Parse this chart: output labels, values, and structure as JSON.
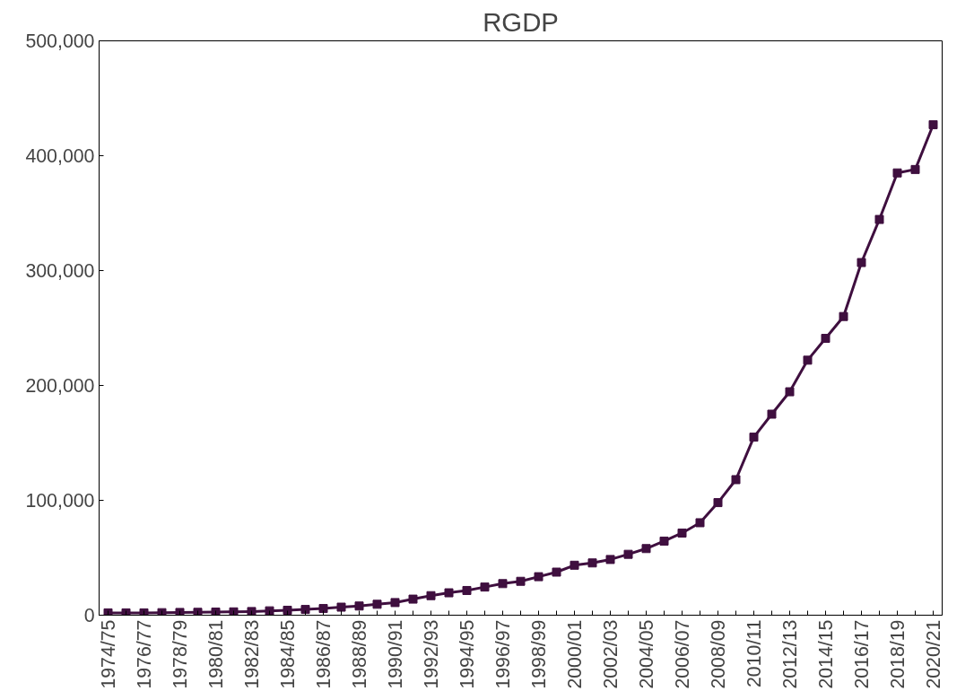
{
  "chart_data": {
    "type": "line",
    "title": "RGDP",
    "categories": [
      "1974/75",
      null,
      "1976/77",
      null,
      "1978/79",
      null,
      "1980/81",
      null,
      "1982/83",
      null,
      "1984/85",
      null,
      "1986/87",
      null,
      "1988/89",
      null,
      "1990/91",
      null,
      "1992/93",
      null,
      "1994/95",
      null,
      "1996/97",
      null,
      "1998/99",
      null,
      "2000/01",
      null,
      "2002/03",
      null,
      "2004/05",
      null,
      "2006/07",
      null,
      "2008/09",
      null,
      "2010/11",
      null,
      "2012/13",
      null,
      "2014/15",
      null,
      "2016/17",
      null,
      "2018/19",
      null,
      "2020/21"
    ],
    "series": [
      {
        "color": "#3f0f3f",
        "values": [
          2000,
          2000,
          2000,
          2200,
          2400,
          2500,
          2700,
          2900,
          3200,
          3800,
          4300,
          5000,
          5800,
          7000,
          8000,
          9500,
          11000,
          14000,
          17000,
          19500,
          21500,
          24500,
          27500,
          29500,
          33500,
          37500,
          43500,
          45500,
          48500,
          53000,
          58000,
          64500,
          71500,
          80500,
          98000,
          118000,
          155000,
          175000,
          194500,
          222000,
          241000,
          260000,
          307000,
          344500,
          385000,
          388000,
          427000
        ]
      }
    ],
    "ylim": [
      0,
      500000
    ],
    "yticks": [
      0,
      {
        "value": 100000,
        "label": "100,000"
      },
      {
        "value": 200000,
        "label": "200,000"
      },
      {
        "value": 300000,
        "label": "300,000"
      },
      {
        "value": 400000,
        "label": "400,000"
      },
      {
        "value": 500000,
        "label": "500,000"
      }
    ],
    "grid": false,
    "marker": "square",
    "line_style": "solid"
  }
}
